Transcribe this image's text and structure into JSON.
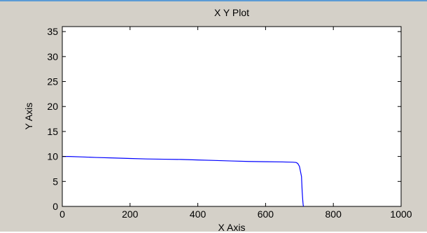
{
  "chart_data": {
    "type": "line",
    "title": "X Y Plot",
    "xlabel": "X Axis",
    "ylabel": "Y Axis",
    "xlim": [
      0,
      1000
    ],
    "ylim": [
      0,
      36
    ],
    "xticks": [
      0,
      200,
      400,
      600,
      800,
      1000
    ],
    "yticks": [
      0,
      5,
      10,
      15,
      20,
      25,
      30,
      35
    ],
    "grid": false,
    "series": [
      {
        "color": "#0000ff",
        "x": [
          0,
          20,
          60,
          100,
          150,
          200,
          250,
          300,
          350,
          400,
          450,
          500,
          550,
          600,
          650,
          680,
          690,
          695,
          700,
          703,
          706,
          708,
          710,
          711,
          712
        ],
        "y": [
          10.0,
          10.0,
          9.9,
          9.8,
          9.7,
          9.6,
          9.5,
          9.45,
          9.4,
          9.3,
          9.2,
          9.1,
          9.0,
          8.95,
          8.9,
          8.85,
          8.8,
          8.6,
          8.0,
          7.0,
          6.0,
          3.0,
          1.0,
          0.3,
          0.0
        ]
      }
    ]
  }
}
